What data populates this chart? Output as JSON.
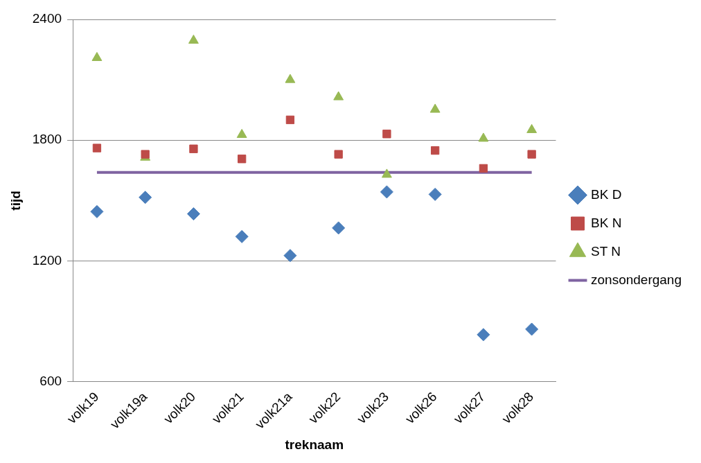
{
  "chart_data": {
    "type": "scatter",
    "xlabel": "treknaam",
    "ylabel": "tijd",
    "categories": [
      "volk19",
      "volk19a",
      "volk20",
      "volk21",
      "volk21a",
      "volk22",
      "volk23",
      "volk26",
      "volk27",
      "volk28"
    ],
    "series": [
      {
        "name": "BK D",
        "color": "#4a7ebb",
        "marker": "diamond",
        "values": [
          1445,
          1516,
          1434,
          1321,
          1227,
          1364,
          1543,
          1531,
          834,
          861
        ]
      },
      {
        "name": "BK N",
        "color": "#be4b48",
        "marker": "square",
        "values": [
          1761,
          1730,
          1757,
          1707,
          1901,
          1730,
          1831,
          1749,
          1660,
          1730
        ]
      },
      {
        "name": "ST N",
        "color": "#98b954",
        "marker": "triangle",
        "values": [
          2209,
          1714,
          2295,
          1827,
          2100,
          2014,
          1629,
          1952,
          1808,
          1851
        ]
      },
      {
        "name": "zonsondergang",
        "type": "line",
        "color": "#7f63a1",
        "marker": "none",
        "values": [
          1640,
          1640,
          1640,
          1640,
          1640,
          1640,
          1640,
          1640,
          1640,
          1640
        ]
      }
    ],
    "ylim": [
      600,
      2400
    ],
    "yticks": [
      600,
      1200,
      1800,
      2400
    ],
    "grid": "y",
    "legend": "right"
  }
}
